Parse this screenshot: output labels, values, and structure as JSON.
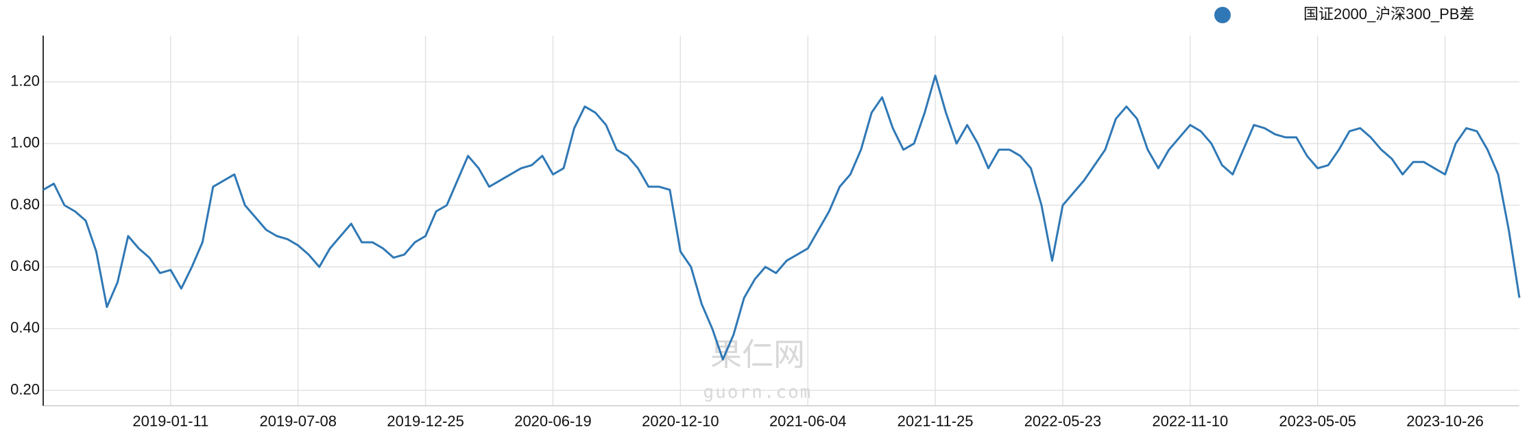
{
  "chart_data": {
    "type": "line",
    "series": [
      {
        "name": "国证2000_沪深300_PB差",
        "color": "#2f78b5",
        "values": [
          0.85,
          0.87,
          0.8,
          0.78,
          0.75,
          0.65,
          0.47,
          0.55,
          0.7,
          0.66,
          0.63,
          0.58,
          0.59,
          0.53,
          0.6,
          0.68,
          0.86,
          0.88,
          0.9,
          0.8,
          0.76,
          0.72,
          0.7,
          0.69,
          0.67,
          0.64,
          0.6,
          0.66,
          0.7,
          0.74,
          0.68,
          0.68,
          0.66,
          0.63,
          0.64,
          0.68,
          0.7,
          0.78,
          0.8,
          0.88,
          0.96,
          0.92,
          0.86,
          0.88,
          0.9,
          0.92,
          0.93,
          0.96,
          0.9,
          0.92,
          1.05,
          1.12,
          1.1,
          1.06,
          0.98,
          0.96,
          0.92,
          0.86,
          0.86,
          0.85,
          0.65,
          0.6,
          0.48,
          0.4,
          0.3,
          0.38,
          0.5,
          0.56,
          0.6,
          0.58,
          0.62,
          0.64,
          0.66,
          0.72,
          0.78,
          0.86,
          0.9,
          0.98,
          1.1,
          1.15,
          1.05,
          0.98,
          1.0,
          1.1,
          1.22,
          1.1,
          1.0,
          1.06,
          1.0,
          0.92,
          0.98,
          0.98,
          0.96,
          0.92,
          0.8,
          0.62,
          0.8,
          0.84,
          0.88,
          0.93,
          0.98,
          1.08,
          1.12,
          1.08,
          0.98,
          0.92,
          0.98,
          1.02,
          1.06,
          1.04,
          1.0,
          0.93,
          0.9,
          0.98,
          1.06,
          1.05,
          1.03,
          1.02,
          1.02,
          0.96,
          0.92,
          0.93,
          0.98,
          1.04,
          1.05,
          1.02,
          0.98,
          0.95,
          0.9,
          0.94,
          0.94,
          0.92,
          0.9,
          1.0,
          1.05,
          1.04,
          0.98,
          0.9,
          0.72,
          0.5
        ]
      }
    ],
    "categories": [
      null,
      null,
      null,
      null,
      null,
      null,
      null,
      null,
      null,
      null,
      null,
      null,
      "2019-01-11",
      null,
      null,
      null,
      null,
      null,
      null,
      null,
      null,
      null,
      null,
      null,
      "2019-07-08",
      null,
      null,
      null,
      null,
      null,
      null,
      null,
      null,
      null,
      null,
      null,
      "2019-12-25",
      null,
      null,
      null,
      null,
      null,
      null,
      null,
      null,
      null,
      null,
      null,
      "2020-06-19",
      null,
      null,
      null,
      null,
      null,
      null,
      null,
      null,
      null,
      null,
      null,
      "2020-12-10",
      null,
      null,
      null,
      null,
      null,
      null,
      null,
      null,
      null,
      null,
      null,
      "2021-06-04",
      null,
      null,
      null,
      null,
      null,
      null,
      null,
      null,
      null,
      null,
      null,
      "2021-11-25",
      null,
      null,
      null,
      null,
      null,
      null,
      null,
      null,
      null,
      null,
      null,
      "2022-05-23",
      null,
      null,
      null,
      null,
      null,
      null,
      null,
      null,
      null,
      null,
      null,
      "2022-11-10",
      null,
      null,
      null,
      null,
      null,
      null,
      null,
      null,
      null,
      null,
      null,
      "2023-05-05",
      null,
      null,
      null,
      null,
      null,
      null,
      null,
      null,
      null,
      null,
      null,
      "2023-10-26",
      null,
      null,
      null,
      null,
      null,
      null,
      null
    ],
    "ylim": [
      0.15,
      1.35
    ],
    "yticks": [
      {
        "value": 0.2,
        "label": "0.20"
      },
      {
        "value": 0.4,
        "label": "0.40"
      },
      {
        "value": 0.6,
        "label": "0.60"
      },
      {
        "value": 0.8,
        "label": "0.80"
      },
      {
        "value": 1.0,
        "label": "1.00"
      },
      {
        "value": 1.2,
        "label": "1.20"
      }
    ],
    "grid": true,
    "legend": "top-right",
    "watermark": [
      "果仁网",
      "guorn.com"
    ]
  }
}
